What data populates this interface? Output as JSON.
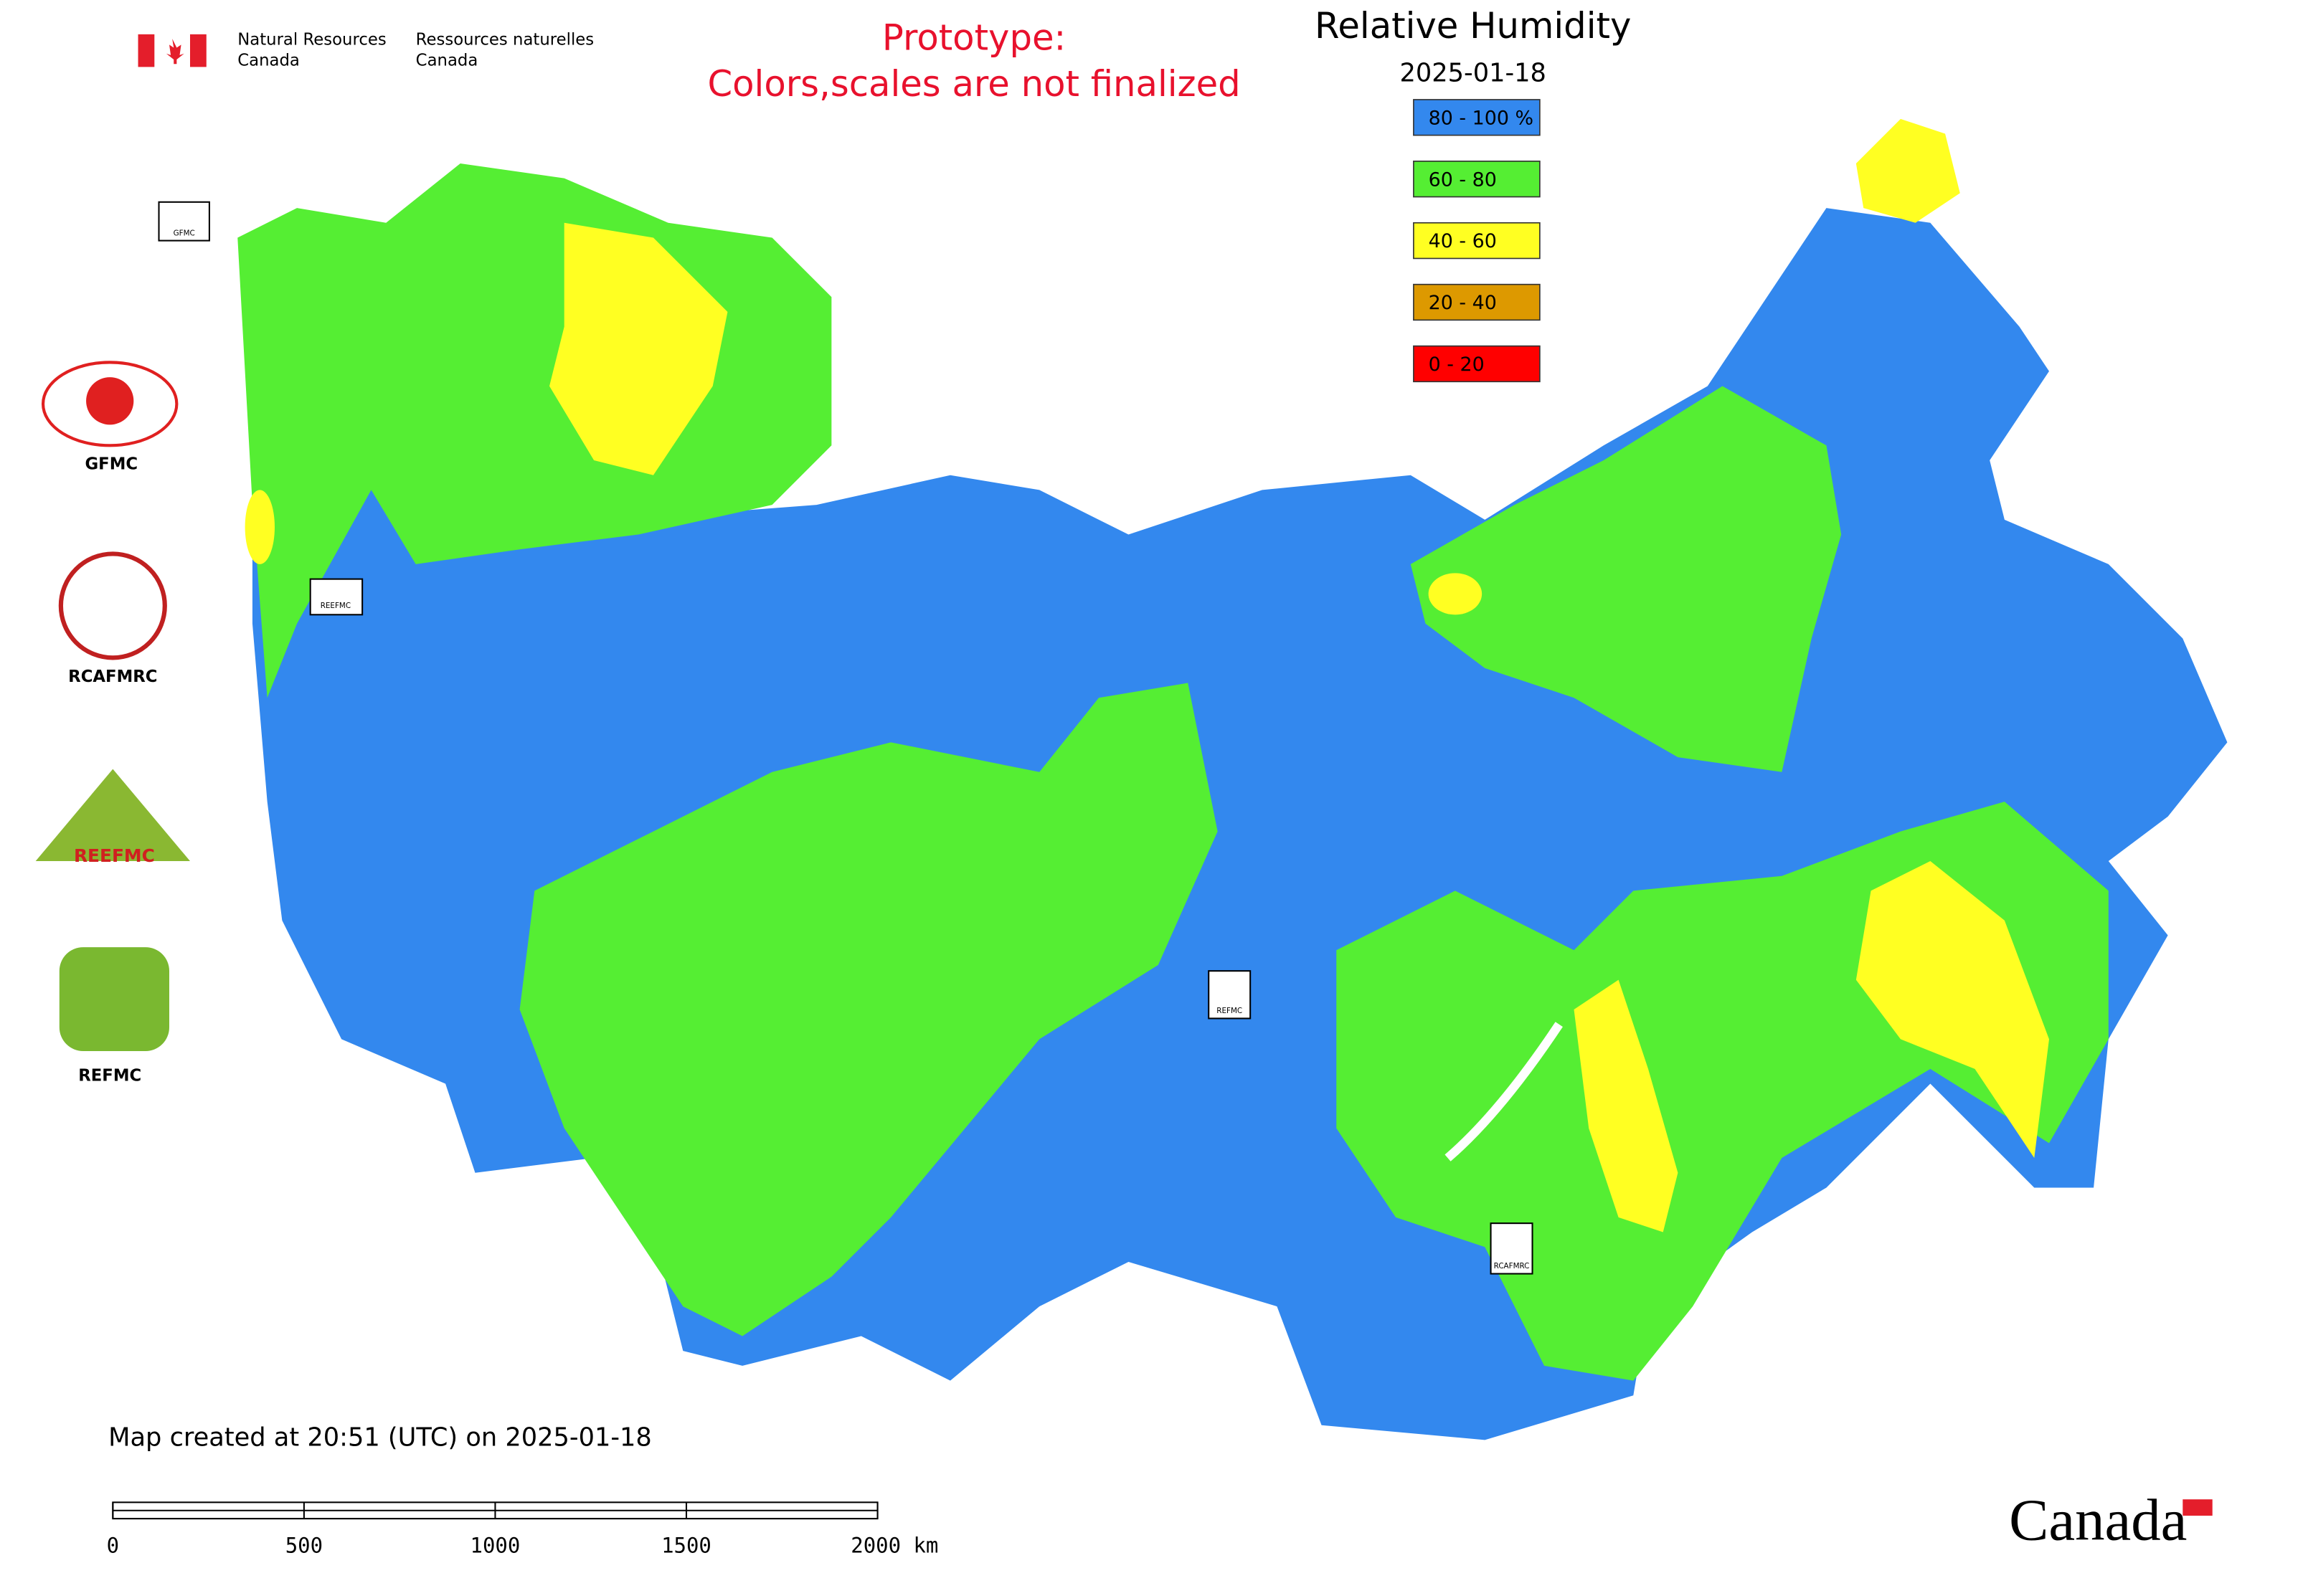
{
  "header": {
    "agency_en": [
      "Natural Resources",
      "Canada"
    ],
    "agency_fr": [
      "Ressources naturelles",
      "Canada"
    ],
    "notice": [
      "Prototype:",
      "Colors,scales are not finalized"
    ],
    "title": "Relative Humidity",
    "date": "2025-01-18"
  },
  "legend": [
    {
      "label": "80 - 100 %",
      "color": "#3388ee"
    },
    {
      "label": "60 - 80",
      "color": "#55ee33"
    },
    {
      "label": "40 - 60",
      "color": "#ffff22"
    },
    {
      "label": "20 - 40",
      "color": "#dd9900"
    },
    {
      "label": "0 - 20",
      "color": "#ff0000"
    }
  ],
  "logos": [
    "GFMC",
    "RCAFMRC",
    "REEFMC",
    "REFMC"
  ],
  "map_markers": [
    "GFMC",
    "REEFMC",
    "REFMC",
    "RCAFMRC"
  ],
  "footer": {
    "created": "Map created at 20:51 (UTC) on 2025-01-18",
    "wordmark": "Canada"
  },
  "scale_bar": {
    "ticks": [
      0,
      500,
      1000,
      1500,
      {
        "value": 2000,
        "label": "2000 km"
      }
    ]
  }
}
